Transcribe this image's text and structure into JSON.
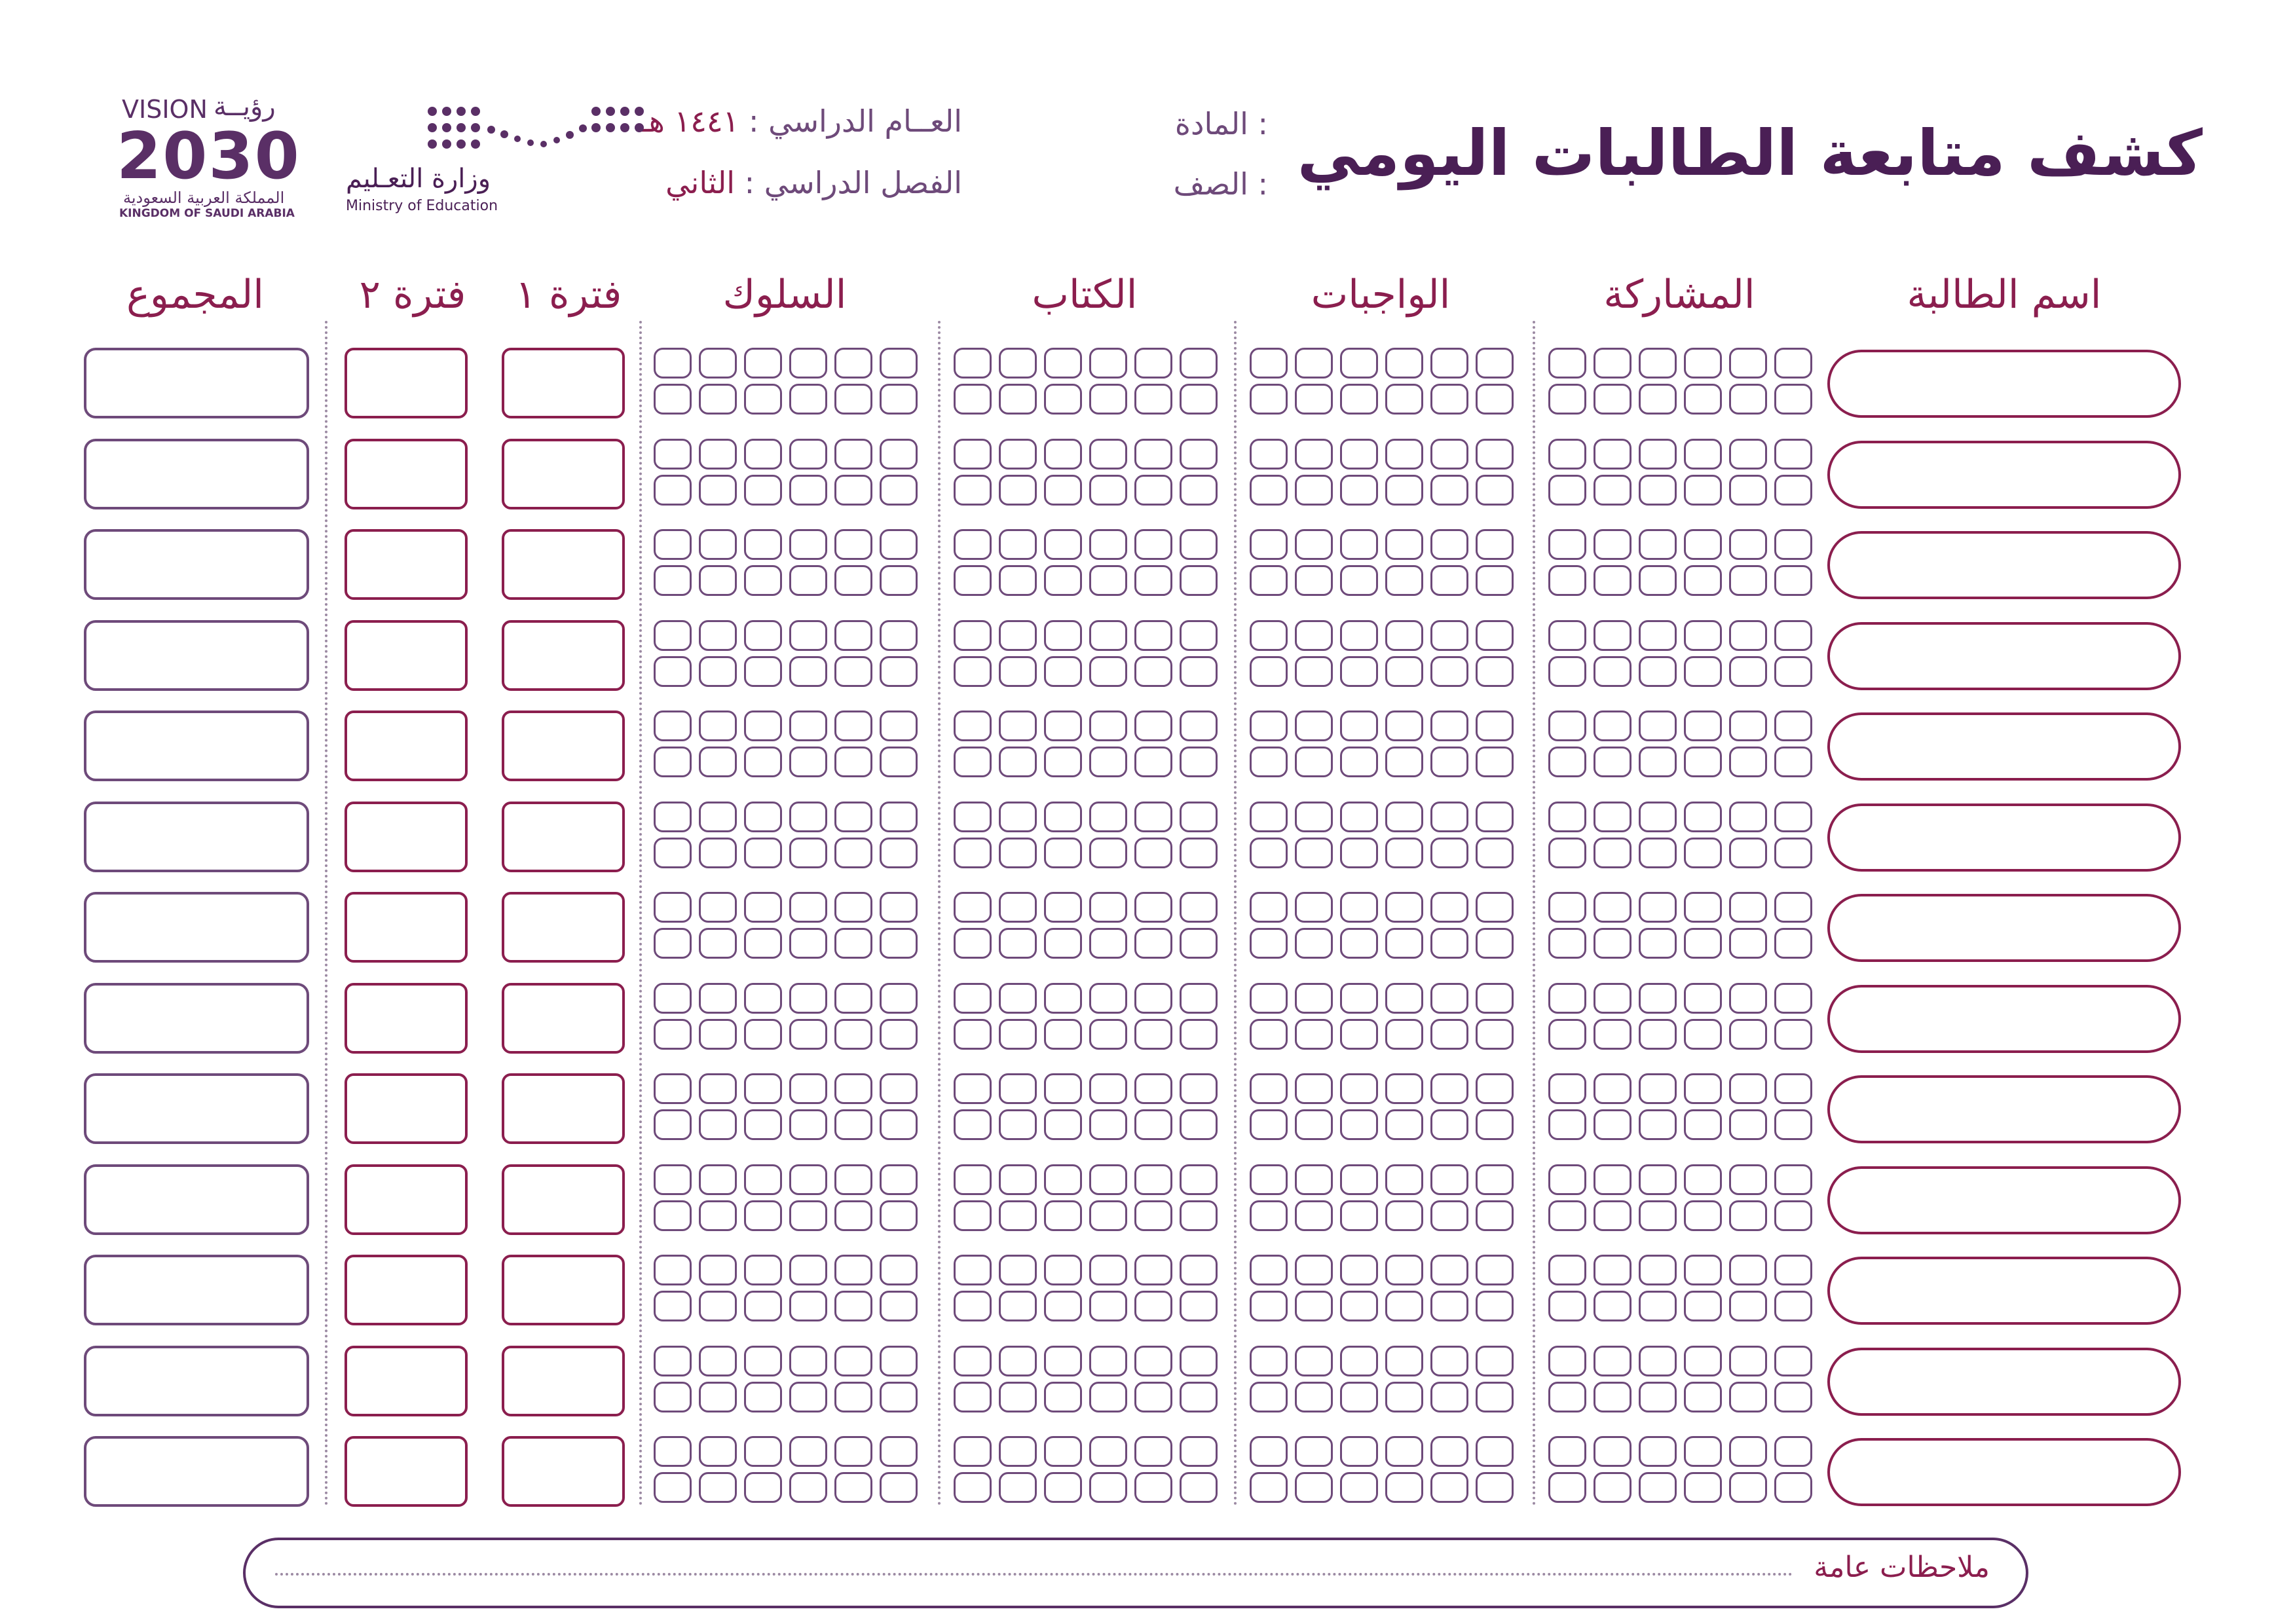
{
  "header": {
    "title": "كشف متابعة الطالبات اليومي",
    "subject_label": "المادة :",
    "class_label": "الصف :",
    "year_label": "العــام الدراسي :",
    "year_value": "١٤٤١ هـ",
    "semester_label": "الفصل الدراسي :",
    "semester_value": "الثاني"
  },
  "logos": {
    "ministry_ar": "وزارة التعـليم",
    "ministry_en": "Ministry of Education",
    "vision_word_en": "VISION",
    "vision_word_ar": "رؤيــة",
    "vision_year": "2030",
    "vision_kingdom_ar": "المملكة العربية السعودية",
    "vision_kingdom_en": "KINGDOM OF SAUDI ARABIA"
  },
  "columns": {
    "student_name": "اسم الطالبة",
    "participation": "المشاركة",
    "homework": "الواجبات",
    "book": "الكتاب",
    "behavior": "السلوك",
    "period1": "فترة ١",
    "period2": "فترة ٢",
    "total": "المجموع"
  },
  "notes": {
    "label": "ملاحظات عامة"
  },
  "colors": {
    "accent": "#8b1e4e",
    "primary": "#4a1f55",
    "cell_border": "#6e4a7a"
  }
}
